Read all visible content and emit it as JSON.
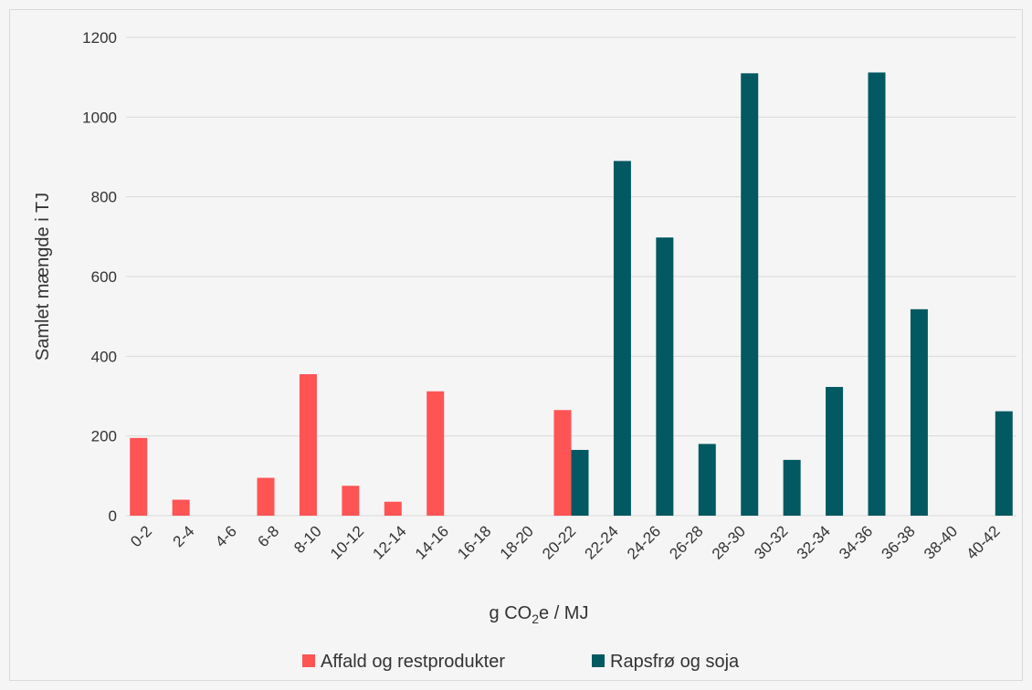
{
  "chart_data": {
    "type": "bar",
    "categories": [
      "0-2",
      "2-4",
      "4-6",
      "6-8",
      "8-10",
      "10-12",
      "12-14",
      "14-16",
      "16-18",
      "18-20",
      "20-22",
      "22-24",
      "24-26",
      "26-28",
      "28-30",
      "30-32",
      "32-34",
      "34-36",
      "36-38",
      "38-40",
      "40-42"
    ],
    "series": [
      {
        "name": "Affald og restprodukter",
        "color": "#ff5454",
        "values": [
          195,
          40,
          0,
          95,
          355,
          75,
          35,
          312,
          0,
          0,
          265,
          0,
          0,
          0,
          0,
          0,
          0,
          0,
          0,
          0,
          0
        ]
      },
      {
        "name": "Rapsfrø og soja",
        "color": "#035961",
        "values": [
          0,
          0,
          0,
          0,
          0,
          0,
          0,
          0,
          0,
          0,
          165,
          890,
          698,
          180,
          1110,
          140,
          323,
          1112,
          518,
          0,
          262
        ]
      }
    ],
    "title": "",
    "xlabel": {
      "main": "g CO",
      "sub": "2",
      "rest": "e / MJ"
    },
    "ylabel": "Samlet mængde i TJ",
    "ylim": [
      0,
      1200
    ],
    "yticks": [
      0,
      200,
      400,
      600,
      800,
      1000,
      1200
    ],
    "grid": true,
    "legend_position": "bottom"
  }
}
